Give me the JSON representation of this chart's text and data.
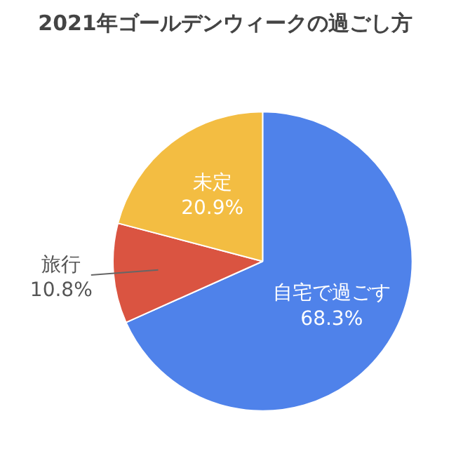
{
  "chart_data": {
    "type": "pie",
    "title": "2021年ゴールデンウィークの過ごし方",
    "categories": [
      "自宅で過ごす",
      "旅行",
      "未定"
    ],
    "values": [
      68.3,
      10.8,
      20.9
    ],
    "colors": [
      "#4f82ea",
      "#da5441",
      "#f3bd42"
    ],
    "value_labels": [
      "68.3%",
      "10.8%",
      "20.9%"
    ]
  }
}
